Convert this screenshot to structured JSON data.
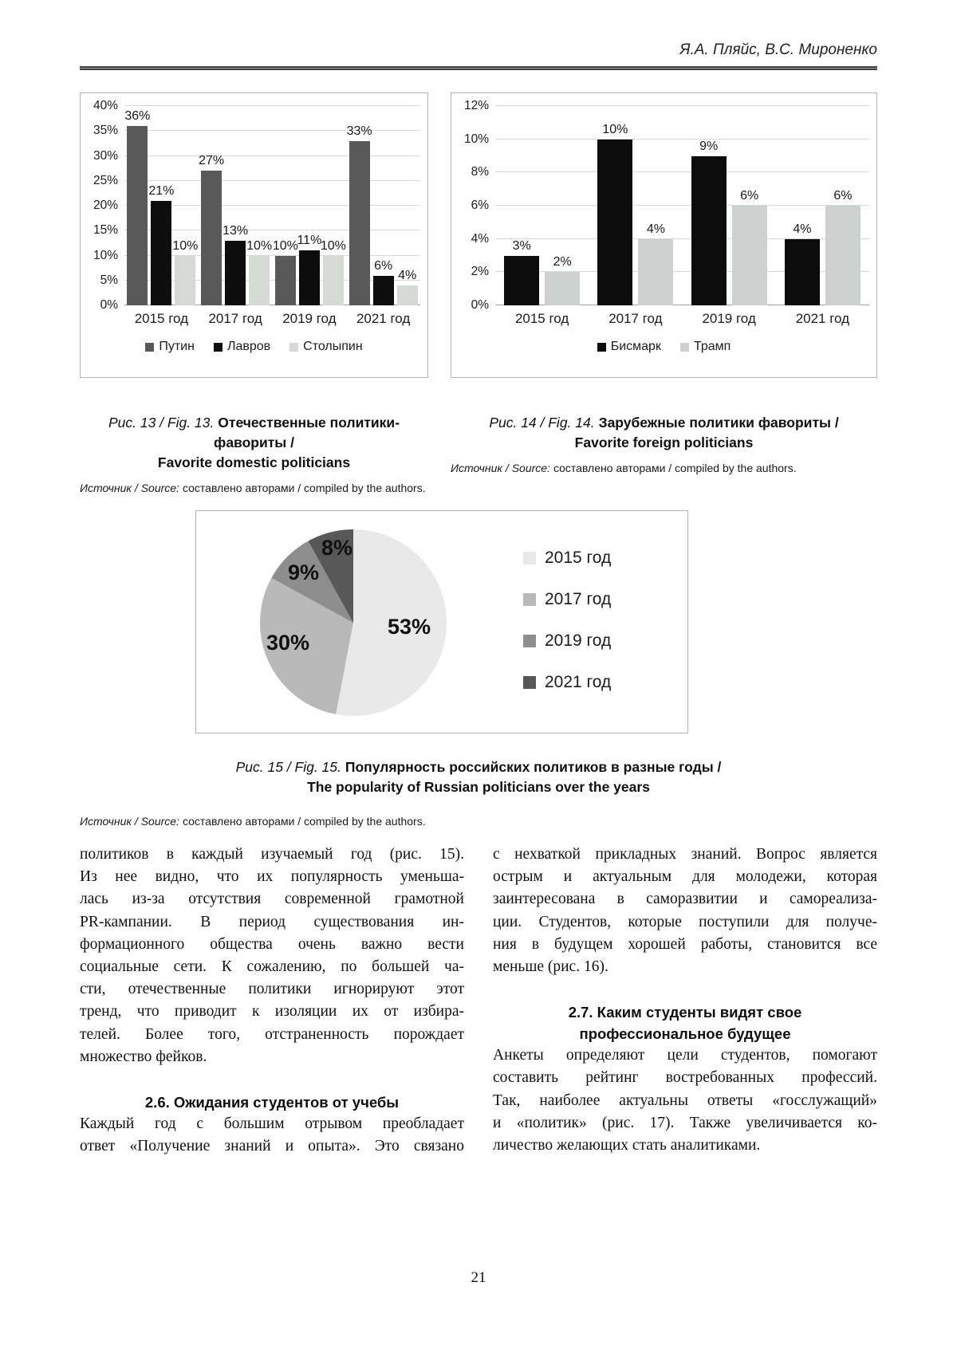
{
  "header": {
    "authors": "Я.А. Пляйс, В.С. Мироненко"
  },
  "page_number": "21",
  "chart_data": [
    {
      "id": "fig13",
      "type": "bar",
      "categories": [
        "2015 год",
        "2017 год",
        "2019 год",
        "2021 год"
      ],
      "series": [
        {
          "name": "Путин",
          "color": "#595959",
          "values": [
            36,
            27,
            10,
            33
          ]
        },
        {
          "name": "Лавров",
          "color": "#0d0d0d",
          "values": [
            21,
            13,
            11,
            6
          ]
        },
        {
          "name": "Столыпин",
          "color": "#d6dad5",
          "values": [
            10,
            10,
            10,
            4
          ]
        }
      ],
      "ylim": [
        0,
        40
      ],
      "ytick_step": 5,
      "value_suffix": "%",
      "grid": true,
      "legend_position": "bottom"
    },
    {
      "id": "fig14",
      "type": "bar",
      "categories": [
        "2015 год",
        "2017 год",
        "2019 год",
        "2021 год"
      ],
      "series": [
        {
          "name": "Бисмарк",
          "color": "#0c0c0c",
          "values": [
            3,
            10,
            9,
            4
          ]
        },
        {
          "name": "Трамп",
          "color": "#cdd1d0",
          "values": [
            2,
            4,
            6,
            6
          ]
        }
      ],
      "ylim": [
        0,
        12
      ],
      "ytick_step": 2,
      "value_suffix": "%",
      "grid": true,
      "legend_position": "bottom"
    },
    {
      "id": "fig15",
      "type": "pie",
      "labels": [
        "2015 год",
        "2017 год",
        "2019 год",
        "2021 год"
      ],
      "values": [
        53,
        30,
        9,
        8
      ],
      "colors": [
        "#e9e9e9",
        "#b9b9b9",
        "#8d8d8d",
        "#585858"
      ],
      "value_suffix": "%",
      "legend_position": "right"
    }
  ],
  "figures": {
    "fig13": {
      "label": "Рис. 13 / Fig. 13.",
      "title_ru": "Отечественные политики-фавориты /",
      "title_en": "Favorite domestic politicians",
      "source_label": "Источник / Source:",
      "source_text": "составлено авторами / compiled by the authors."
    },
    "fig14": {
      "label": "Рис. 14 / Fig. 14.",
      "title_ru": "Зарубежные политики фавориты /",
      "title_en": "Favorite foreign politicians",
      "source_label": "Источник / Source:",
      "source_text": "составлено авторами / compiled by the authors."
    },
    "fig15": {
      "label": "Рис. 15 / Fig. 15.",
      "title_ru": "Популярность российских политиков в разные годы /",
      "title_en": "The popularity of Russian politicians over the years",
      "source_label": "Источник / Source:",
      "source_text": "составлено авторами / compiled by the authors."
    }
  },
  "body": {
    "left": {
      "p1": [
        "политиков в каждый изучаемый год (рис. 15).",
        "Из нее видно, что их популярность уменьша-",
        "лась из-за отсутствия современной грамотной",
        "PR-кампании. В период существования ин-",
        "формационного общества очень важно вести",
        "социальные сети. К сожалению, по большей ча-",
        "сти, отечественные политики игнорируют этот",
        "тренд, что приводит к изоляции их от избира-",
        "телей. Более того, отстраненность порождает",
        "множество фейков."
      ],
      "h26": "2.6. Ожидания студентов от учебы",
      "p2": [
        "Каждый год с большим отрывом преобладает",
        "ответ «Получение знаний и опыта». Это связано"
      ]
    },
    "right": {
      "p1": [
        "с нехваткой прикладных знаний. Вопрос является",
        "острым и актуальным для молодежи, которая",
        "заинтересована в саморазвитии и самореализа-",
        "ции. Студентов, которые поступили для получе-",
        "ния в будущем хорошей работы, становится все",
        "меньше (рис. 16)."
      ],
      "h27": [
        "2.7. Каким студенты видят свое",
        "профессиональное будущее"
      ],
      "p2": [
        "Анкеты определяют цели студентов, помогают",
        "составить рейтинг востребованных профессий.",
        "Так, наиболее актуальны ответы «госслужащий»",
        "и «политик» (рис. 17). Также увеличивается ко-",
        "личество желающих стать аналитиками."
      ]
    }
  }
}
